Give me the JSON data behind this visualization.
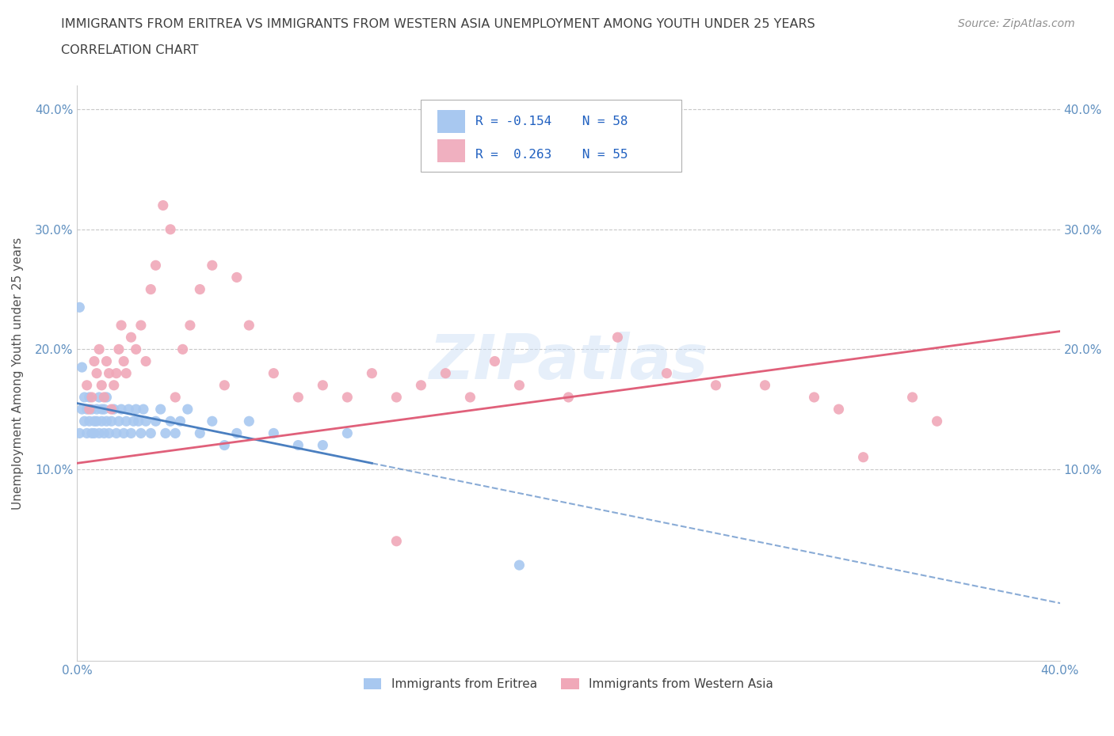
{
  "title_line1": "IMMIGRANTS FROM ERITREA VS IMMIGRANTS FROM WESTERN ASIA UNEMPLOYMENT AMONG YOUTH UNDER 25 YEARS",
  "title_line2": "CORRELATION CHART",
  "source": "Source: ZipAtlas.com",
  "watermark": "ZIPatlas",
  "ylabel": "Unemployment Among Youth under 25 years",
  "xlim": [
    0.0,
    0.4
  ],
  "ylim": [
    -0.06,
    0.42
  ],
  "R_eritrea": -0.154,
  "N_eritrea": 58,
  "R_western_asia": 0.263,
  "N_western_asia": 55,
  "eritrea_color": "#a8c8f0",
  "western_asia_color": "#f0a8b8",
  "eritrea_line_color": "#4a7fc0",
  "western_asia_line_color": "#e0607a",
  "background_color": "#ffffff",
  "grid_color": "#c8c8c8",
  "title_color": "#404040",
  "axis_color": "#6090c0",
  "legend_box_eritrea": "#a8c8f0",
  "legend_box_western_asia": "#f0b0c0",
  "eritrea_x": [
    0.001,
    0.002,
    0.003,
    0.003,
    0.004,
    0.004,
    0.005,
    0.005,
    0.006,
    0.006,
    0.007,
    0.007,
    0.008,
    0.008,
    0.009,
    0.009,
    0.01,
    0.01,
    0.011,
    0.011,
    0.012,
    0.012,
    0.013,
    0.014,
    0.015,
    0.016,
    0.017,
    0.018,
    0.019,
    0.02,
    0.021,
    0.022,
    0.023,
    0.024,
    0.025,
    0.026,
    0.027,
    0.028,
    0.03,
    0.032,
    0.034,
    0.036,
    0.038,
    0.04,
    0.042,
    0.045,
    0.05,
    0.055,
    0.06,
    0.065,
    0.07,
    0.08,
    0.09,
    0.1,
    0.11,
    0.001,
    0.002,
    0.18
  ],
  "eritrea_y": [
    0.13,
    0.15,
    0.14,
    0.16,
    0.13,
    0.15,
    0.14,
    0.16,
    0.13,
    0.15,
    0.14,
    0.13,
    0.15,
    0.14,
    0.16,
    0.13,
    0.15,
    0.14,
    0.13,
    0.15,
    0.14,
    0.16,
    0.13,
    0.14,
    0.15,
    0.13,
    0.14,
    0.15,
    0.13,
    0.14,
    0.15,
    0.13,
    0.14,
    0.15,
    0.14,
    0.13,
    0.15,
    0.14,
    0.13,
    0.14,
    0.15,
    0.13,
    0.14,
    0.13,
    0.14,
    0.15,
    0.13,
    0.14,
    0.12,
    0.13,
    0.14,
    0.13,
    0.12,
    0.12,
    0.13,
    0.235,
    0.185,
    0.02
  ],
  "western_asia_x": [
    0.004,
    0.005,
    0.006,
    0.007,
    0.008,
    0.009,
    0.01,
    0.011,
    0.012,
    0.013,
    0.014,
    0.015,
    0.016,
    0.017,
    0.018,
    0.019,
    0.02,
    0.022,
    0.024,
    0.026,
    0.028,
    0.03,
    0.032,
    0.035,
    0.038,
    0.04,
    0.043,
    0.046,
    0.05,
    0.055,
    0.06,
    0.065,
    0.07,
    0.08,
    0.09,
    0.1,
    0.11,
    0.12,
    0.13,
    0.14,
    0.15,
    0.16,
    0.17,
    0.18,
    0.2,
    0.22,
    0.24,
    0.26,
    0.28,
    0.3,
    0.31,
    0.32,
    0.34,
    0.35,
    0.13
  ],
  "western_asia_y": [
    0.17,
    0.15,
    0.16,
    0.19,
    0.18,
    0.2,
    0.17,
    0.16,
    0.19,
    0.18,
    0.15,
    0.17,
    0.18,
    0.2,
    0.22,
    0.19,
    0.18,
    0.21,
    0.2,
    0.22,
    0.19,
    0.25,
    0.27,
    0.32,
    0.3,
    0.16,
    0.2,
    0.22,
    0.25,
    0.27,
    0.17,
    0.26,
    0.22,
    0.18,
    0.16,
    0.17,
    0.16,
    0.18,
    0.16,
    0.17,
    0.18,
    0.16,
    0.19,
    0.17,
    0.16,
    0.21,
    0.18,
    0.17,
    0.17,
    0.16,
    0.15,
    0.11,
    0.16,
    0.14,
    0.04
  ]
}
